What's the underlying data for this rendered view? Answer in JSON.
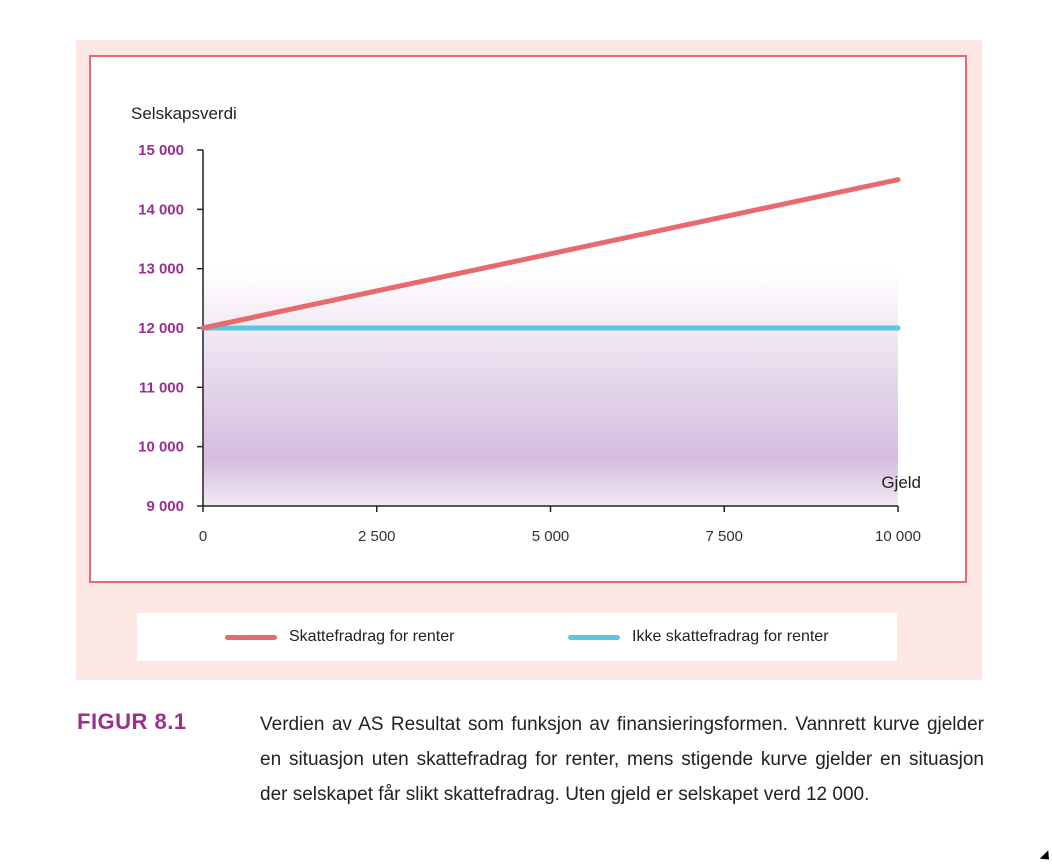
{
  "chart_data": {
    "type": "line",
    "ylabel": "Selskapsverdi",
    "xlabel": "Gjeld",
    "x": [
      0,
      10000
    ],
    "xlim": [
      0,
      10000
    ],
    "ylim": [
      9000,
      15000
    ],
    "x_ticks": [
      0,
      2500,
      5000,
      7500,
      10000
    ],
    "x_tick_labels": [
      "0",
      "2 500",
      "5 000",
      "7 500",
      "10 000"
    ],
    "y_ticks": [
      9000,
      10000,
      11000,
      12000,
      13000,
      14000,
      15000
    ],
    "y_tick_labels": [
      "9 000",
      "10 000",
      "11 000",
      "12 000",
      "13 000",
      "14 000",
      "15 000"
    ],
    "series": [
      {
        "name": "Skattefradrag for renter",
        "color": "#e66a6e",
        "values": [
          12000,
          14500
        ]
      },
      {
        "name": "Ikke skattefradrag for renter",
        "color": "#5bc6df",
        "values": [
          12000,
          12000
        ]
      }
    ],
    "grid": false,
    "legend_position": "bottom",
    "shaded_region_color": "#d2b9dc"
  },
  "caption": {
    "label": "FIGUR 8.1",
    "text": "Verdien av AS Resultat som funksjon av finansieringsformen. Vannrett kurve gjelder en situasjon uten skattefradrag for renter, mens stigende kurve gjelder en situasjon der selskapet får slikt skattefradrag. Uten gjeld er selskapet verd 12 000."
  },
  "colors": {
    "frame": "#e06e6e",
    "panel_background": "#fde8e5",
    "accent": "#9a2f8e"
  }
}
